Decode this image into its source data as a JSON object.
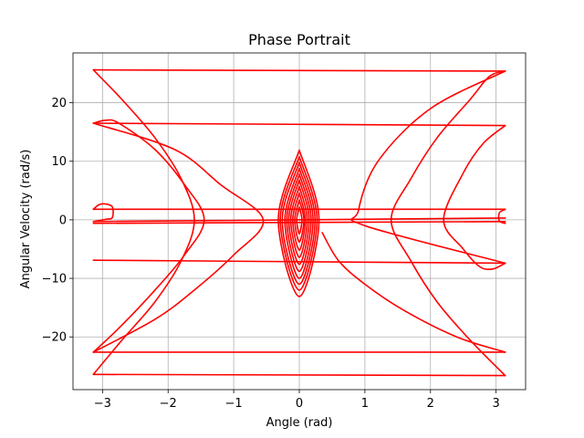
{
  "chart_data": {
    "type": "line",
    "title": "Phase Portrait",
    "xlabel": "Angle (rad)",
    "ylabel": "Angular Velocity (rad/s)",
    "xlim": [
      -3.45,
      3.45
    ],
    "ylim": [
      -29,
      28.5
    ],
    "xticks": [
      -3,
      -2,
      -1,
      0,
      1,
      2,
      3
    ],
    "xtick_labels": [
      "−3",
      "−2",
      "−1",
      "0",
      "1",
      "2",
      "3"
    ],
    "yticks": [
      -20,
      -10,
      0,
      10,
      20
    ],
    "ytick_labels": [
      "−20",
      "−10",
      "0",
      "10",
      "20"
    ],
    "grid": true,
    "legend": "none",
    "line_color": "#ff0000",
    "series": [
      {
        "points": [
          [
            -3.14,
            25.6
          ],
          [
            3.14,
            25.4
          ]
        ]
      },
      {
        "points": [
          [
            -3.14,
            16.5
          ],
          [
            3.14,
            16.1
          ]
        ]
      },
      {
        "points": [
          [
            -3.14,
            1.8
          ],
          [
            3.14,
            1.8
          ]
        ]
      },
      {
        "points": [
          [
            -3.14,
            -0.3
          ],
          [
            3.14,
            0.3
          ]
        ]
      },
      {
        "points": [
          [
            -3.14,
            -0.6
          ],
          [
            3.14,
            -0.3
          ]
        ]
      },
      {
        "points": [
          [
            -3.14,
            -6.9
          ],
          [
            3.14,
            -7.4
          ]
        ]
      },
      {
        "points": [
          [
            -3.14,
            -22.6
          ],
          [
            3.14,
            -22.6
          ]
        ]
      },
      {
        "points": [
          [
            -3.14,
            -26.4
          ],
          [
            3.14,
            -26.6
          ]
        ]
      },
      {
        "points": [
          [
            -3.14,
            25.6
          ],
          [
            -2.7,
            20.5
          ],
          [
            -2.2,
            14
          ],
          [
            -1.8,
            7
          ],
          [
            -1.6,
            0
          ],
          [
            -1.8,
            -7
          ],
          [
            -2.2,
            -14
          ],
          [
            -2.7,
            -20.5
          ],
          [
            -3.14,
            -26.4
          ]
        ]
      },
      {
        "points": [
          [
            -3.14,
            16.5
          ],
          [
            -2.95,
            17
          ],
          [
            -2.75,
            16.5
          ],
          [
            -2.2,
            12
          ],
          [
            -1.75,
            6
          ],
          [
            -1.45,
            0
          ],
          [
            -1.75,
            -6
          ],
          [
            -2.2,
            -12
          ],
          [
            -2.75,
            -18.5
          ],
          [
            -3.14,
            -22.6
          ]
        ]
      },
      {
        "points": [
          [
            -3.14,
            16.5
          ],
          [
            -1.9,
            12
          ],
          [
            -1.2,
            6
          ],
          [
            -0.55,
            0
          ],
          [
            -1.0,
            -6
          ],
          [
            -1.6,
            -12
          ],
          [
            -2.2,
            -17
          ],
          [
            -3.14,
            -22.6
          ]
        ]
      },
      {
        "points": [
          [
            3.14,
            25.4
          ],
          [
            2.9,
            24.5
          ],
          [
            2.6,
            20.5
          ],
          [
            2.1,
            14
          ],
          [
            1.7,
            7
          ],
          [
            1.4,
            0
          ],
          [
            1.7,
            -7
          ],
          [
            2.1,
            -14
          ],
          [
            2.6,
            -20.5
          ],
          [
            3.14,
            -26.6
          ]
        ]
      },
      {
        "points": [
          [
            3.14,
            16.1
          ],
          [
            2.8,
            13
          ],
          [
            2.5,
            8
          ],
          [
            2.2,
            0
          ],
          [
            2.5,
            -5
          ],
          [
            2.75,
            -8
          ],
          [
            2.95,
            -8.4
          ],
          [
            3.14,
            -7.4
          ]
        ]
      },
      {
        "points": [
          [
            3.14,
            25.4
          ],
          [
            2.0,
            19
          ],
          [
            1.2,
            10
          ],
          [
            0.9,
            1.5
          ],
          [
            1.0,
            -1
          ],
          [
            3.14,
            -7.4
          ]
        ]
      },
      {
        "points": [
          [
            0.35,
            -2.2
          ],
          [
            0.6,
            -7
          ],
          [
            1.0,
            -11
          ],
          [
            1.6,
            -15.5
          ],
          [
            2.4,
            -20
          ],
          [
            3.14,
            -22.6
          ]
        ]
      },
      {
        "points": [
          [
            -3.14,
            1.8
          ],
          [
            -3.05,
            2.6
          ],
          [
            -2.95,
            2.7
          ],
          [
            -2.85,
            2.2
          ],
          [
            -2.85,
            0.4
          ],
          [
            -2.95,
            0.1
          ],
          [
            -3.14,
            -0.3
          ]
        ]
      },
      {
        "points": [
          [
            3.14,
            1.8
          ],
          [
            3.05,
            1.2
          ],
          [
            3.05,
            -0.2
          ],
          [
            3.14,
            -0.6
          ]
        ]
      },
      {
        "points": [
          [
            0,
            11.9
          ],
          [
            0.3,
            0
          ],
          [
            0,
            -13.1
          ],
          [
            -0.32,
            0
          ],
          [
            0,
            11.9
          ]
        ]
      },
      {
        "points": [
          [
            0,
            10.8
          ],
          [
            0.27,
            0
          ],
          [
            0,
            -12
          ],
          [
            -0.29,
            0
          ],
          [
            0,
            10.8
          ]
        ]
      },
      {
        "points": [
          [
            0,
            9.8
          ],
          [
            0.24,
            0
          ],
          [
            0,
            -11
          ],
          [
            -0.26,
            0
          ],
          [
            0,
            9.8
          ]
        ]
      },
      {
        "points": [
          [
            0,
            8.8
          ],
          [
            0.21,
            0
          ],
          [
            0,
            -10
          ],
          [
            -0.22,
            0
          ],
          [
            0,
            8.8
          ]
        ]
      },
      {
        "points": [
          [
            0,
            7.8
          ],
          [
            0.18,
            0
          ],
          [
            0,
            -8.8
          ],
          [
            -0.19,
            0
          ],
          [
            0,
            7.8
          ]
        ]
      },
      {
        "points": [
          [
            0,
            6.8
          ],
          [
            0.15,
            0
          ],
          [
            0,
            -7.6
          ],
          [
            -0.16,
            0
          ],
          [
            0,
            6.8
          ]
        ]
      },
      {
        "points": [
          [
            0,
            5.7
          ],
          [
            0.12,
            0
          ],
          [
            0,
            -6.4
          ],
          [
            -0.13,
            0
          ],
          [
            0,
            5.7
          ]
        ]
      },
      {
        "points": [
          [
            0,
            4.6
          ],
          [
            0.09,
            0
          ],
          [
            0,
            -5.2
          ],
          [
            -0.1,
            0
          ],
          [
            0,
            4.6
          ]
        ]
      },
      {
        "points": [
          [
            0,
            3.4
          ],
          [
            0.07,
            0
          ],
          [
            0,
            -3.8
          ],
          [
            -0.07,
            0
          ],
          [
            0,
            3.4
          ]
        ]
      },
      {
        "points": [
          [
            0,
            2.2
          ],
          [
            0.04,
            0
          ],
          [
            0,
            -2.4
          ],
          [
            -0.04,
            0
          ],
          [
            0,
            2.2
          ]
        ]
      }
    ]
  }
}
